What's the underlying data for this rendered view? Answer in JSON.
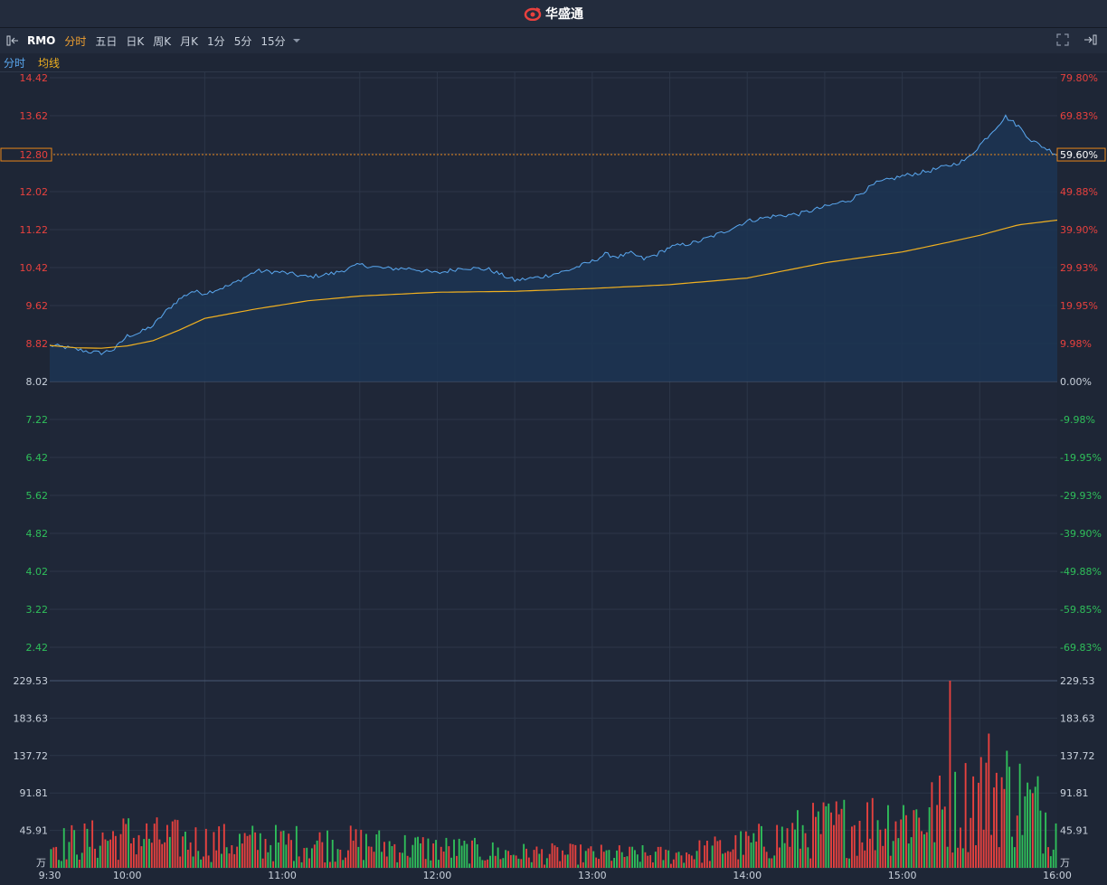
{
  "brand": {
    "name": "华盛通"
  },
  "toolbar": {
    "symbol": "RMO",
    "periods": [
      "分时",
      "五日",
      "日K",
      "周K",
      "月K",
      "1分",
      "5分",
      "15分"
    ]
  },
  "legend": {
    "line": "分时",
    "avg": "均线"
  },
  "colors": {
    "price_line": "#5aa8f0",
    "avg_line": "#f0b020",
    "up": "#e8413e",
    "down": "#2fbf5a",
    "highlight": "#e8861a"
  },
  "chart_data": [
    {
      "type": "line",
      "name": "price",
      "base_price": 8.02,
      "current_price_label": "12.80",
      "current_pct_label": "59.60%",
      "y_ticks_up": [
        "14.42",
        "13.62",
        "12.80",
        "12.02",
        "11.22",
        "10.42",
        "9.62",
        "8.82"
      ],
      "y_tick_base": "8.02",
      "y_ticks_down": [
        "7.22",
        "6.42",
        "5.62",
        "4.82",
        "4.02",
        "3.22",
        "2.42"
      ],
      "pct_ticks_up": [
        "79.80%",
        "69.83%",
        "59.60%",
        "49.88%",
        "39.90%",
        "29.93%",
        "19.95%",
        "9.98%"
      ],
      "pct_tick_base": "0.00%",
      "pct_ticks_down": [
        "-9.98%",
        "-19.95%",
        "-29.93%",
        "-39.90%",
        "-49.88%",
        "-59.85%",
        "-69.83%"
      ],
      "ylim": [
        2.0,
        14.42
      ],
      "x_ticks": [
        "9:30",
        "10:00",
        "11:00",
        "12:00",
        "13:00",
        "14:00",
        "15:00",
        "16:00"
      ],
      "x_minutes": [
        0,
        60,
        120,
        150,
        180,
        210,
        240,
        270,
        300,
        330,
        360,
        390
      ],
      "price_minutes": [
        0,
        5,
        10,
        15,
        20,
        25,
        30,
        35,
        40,
        45,
        50,
        55,
        60,
        70,
        80,
        90,
        100,
        110,
        120,
        130,
        140,
        150,
        160,
        170,
        180,
        190,
        200,
        210,
        215,
        220,
        225,
        230,
        235,
        240,
        250,
        260,
        270,
        280,
        290,
        300,
        310,
        320,
        330,
        340,
        350,
        355,
        360,
        365,
        370,
        375,
        380,
        385,
        390
      ],
      "price_values": [
        8.78,
        8.75,
        8.7,
        8.65,
        8.62,
        8.7,
        8.98,
        9.05,
        9.2,
        9.5,
        9.75,
        9.92,
        9.88,
        10.05,
        10.35,
        10.32,
        10.22,
        10.3,
        10.48,
        10.4,
        10.4,
        10.3,
        10.42,
        10.38,
        10.15,
        10.22,
        10.35,
        10.55,
        10.7,
        10.65,
        10.72,
        10.6,
        10.7,
        10.85,
        10.95,
        11.15,
        11.4,
        11.5,
        11.55,
        11.7,
        11.85,
        12.2,
        12.35,
        12.45,
        12.6,
        12.7,
        13.0,
        13.3,
        13.6,
        13.4,
        13.1,
        12.95,
        12.8
      ],
      "avg_minutes": [
        0,
        10,
        20,
        30,
        40,
        50,
        60,
        80,
        100,
        120,
        150,
        180,
        210,
        240,
        270,
        300,
        330,
        345,
        360,
        375,
        390
      ],
      "avg_values": [
        8.78,
        8.73,
        8.72,
        8.77,
        8.88,
        9.1,
        9.35,
        9.55,
        9.72,
        9.82,
        9.9,
        9.92,
        9.98,
        10.06,
        10.2,
        10.52,
        10.75,
        10.92,
        11.1,
        11.32,
        11.42
      ]
    },
    {
      "type": "bar",
      "name": "volume",
      "unit": "万",
      "y_ticks": [
        "229.53",
        "183.63",
        "137.72",
        "91.81",
        "45.91"
      ],
      "ylim": [
        0,
        229.53
      ],
      "bar_count": 390,
      "seed_note": "",
      "profile_minutes": [
        0,
        30,
        60,
        120,
        180,
        240,
        270,
        300,
        330,
        350,
        365,
        375,
        390
      ],
      "profile_levels": [
        40,
        55,
        45,
        42,
        25,
        22,
        40,
        70,
        85,
        100,
        150,
        120,
        80
      ],
      "peak": {
        "minute": 348,
        "value": 229.53
      }
    }
  ]
}
